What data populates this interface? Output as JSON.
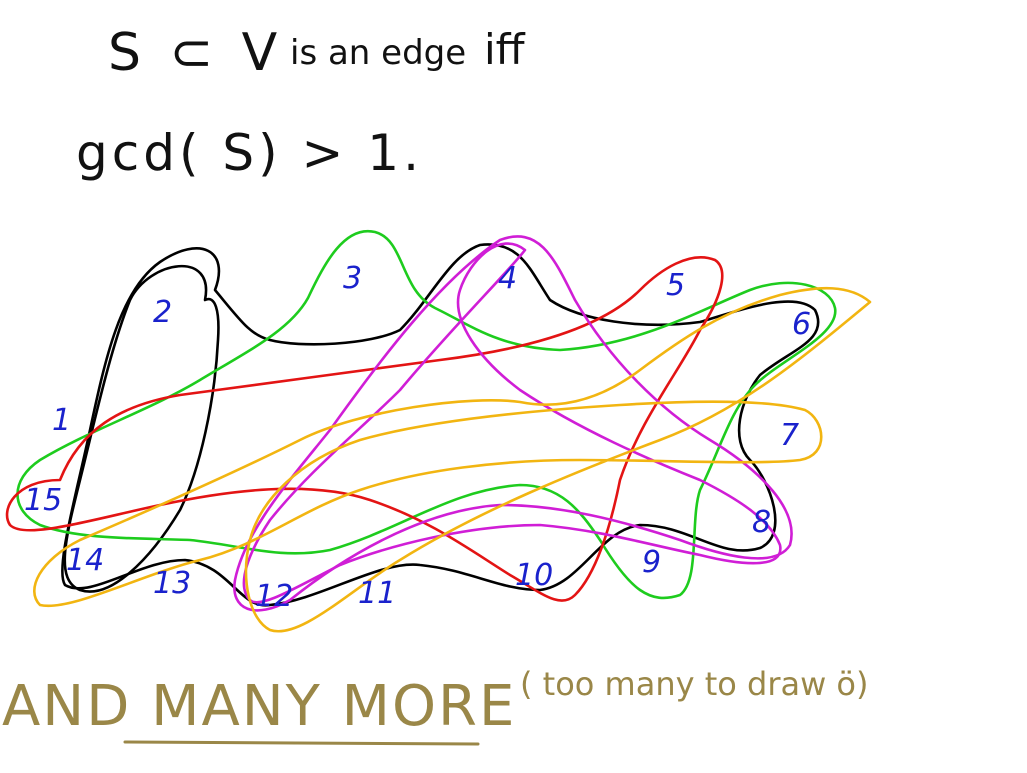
{
  "heading": {
    "line1_set": "S ⊂ V",
    "line1_mid": "is an edge",
    "line1_end": "iff",
    "line2": "gcd( S) > 1."
  },
  "vertices": [
    "1",
    "2",
    "3",
    "4",
    "5",
    "6",
    "7",
    "8",
    "9",
    "10",
    "11",
    "12",
    "13",
    "14",
    "15"
  ],
  "edges": [
    {
      "name": "black-edge",
      "color": "#000000"
    },
    {
      "name": "green-edge",
      "color": "#1ecc1e"
    },
    {
      "name": "red-edge",
      "color": "#e31414"
    },
    {
      "name": "magenta-edge",
      "color": "#d01ed6"
    },
    {
      "name": "orange-edge",
      "color": "#f2b511"
    }
  ],
  "colors": {
    "ink": "#111111",
    "vertex_label": "#1a22cc",
    "footer": "#9a8748"
  },
  "footer": {
    "main": "AND MANY MORE",
    "paren": "( too many to draw ö)"
  }
}
